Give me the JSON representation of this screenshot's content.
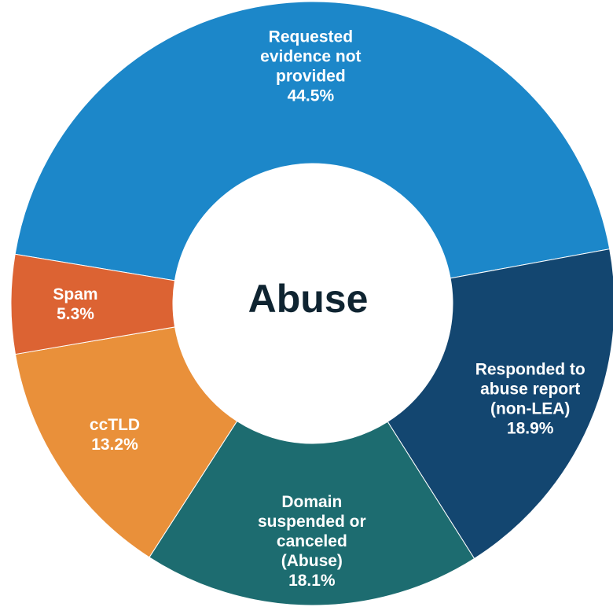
{
  "chart_data": {
    "type": "pie",
    "variant": "donut",
    "center_label": "Abuse",
    "slices": [
      {
        "label_lines": [
          "Requested",
          "evidence not",
          "provided"
        ],
        "value_label": "44.5%",
        "value": 44.5,
        "color": "#1c87c9"
      },
      {
        "label_lines": [
          "Responded to",
          "abuse report",
          "(non-LEA)"
        ],
        "value_label": "18.9%",
        "value": 18.9,
        "color": "#134670"
      },
      {
        "label_lines": [
          "Domain",
          "suspended or",
          "canceled",
          "(Abuse)"
        ],
        "value_label": "18.1%",
        "value": 18.1,
        "color": "#1d6c70"
      },
      {
        "label_lines": [
          "ccTLD"
        ],
        "value_label": "13.2%",
        "value": 13.2,
        "color": "#e9903a"
      },
      {
        "label_lines": [
          "Spam"
        ],
        "value_label": "5.3%",
        "value": 5.3,
        "color": "#dc6333"
      }
    ]
  }
}
